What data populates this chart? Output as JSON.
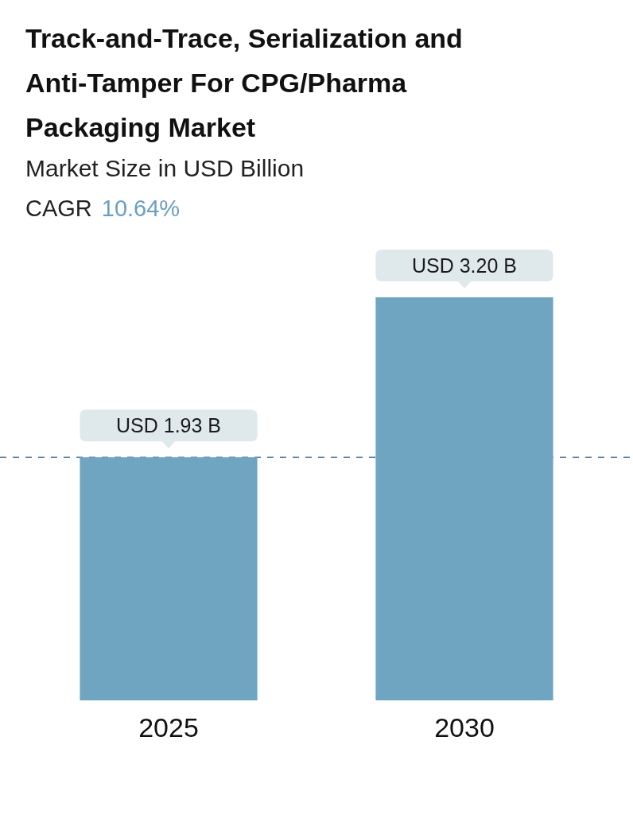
{
  "chart_data": {
    "type": "bar",
    "title": "Track-and-Trace, Serialization and Anti-Tamper For CPG/Pharma Packaging Market",
    "subtitle": "Market Size in USD Billion",
    "annotations": [
      "CAGR",
      "10.64%"
    ],
    "categories": [
      "2025",
      "2030"
    ],
    "series": [
      {
        "color": "#6fa5c0",
        "values": [
          1.93,
          3.2
        ],
        "value_labels": [
          "USD 1.93 B",
          "USD 3.20 B"
        ]
      }
    ],
    "ref_lines": [
      {
        "axis": "y",
        "value": 1.93,
        "color": "#5b82a8",
        "line_style": "dashed"
      }
    ]
  }
}
